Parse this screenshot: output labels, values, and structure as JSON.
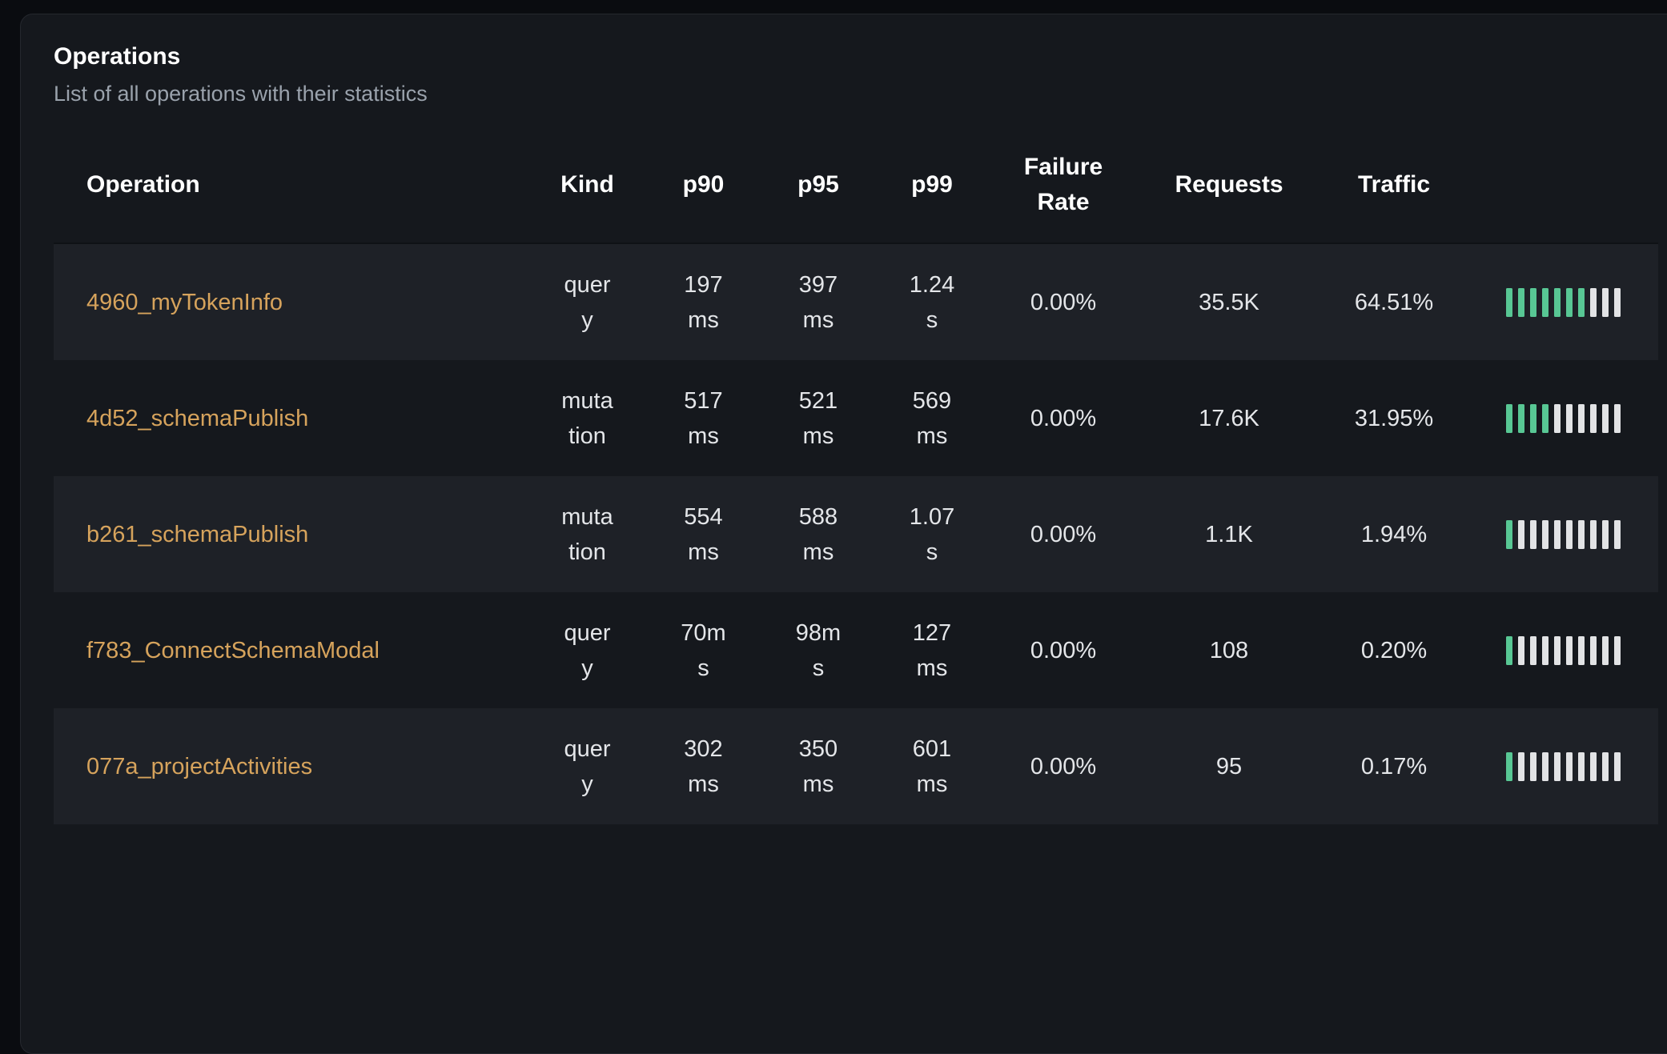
{
  "card": {
    "title": "Operations",
    "subtitle": "List of all operations with their statistics"
  },
  "table": {
    "columns": [
      "Operation",
      "Kind",
      "p90",
      "p95",
      "p99",
      "Failure Rate",
      "Requests",
      "Traffic"
    ],
    "rows": [
      {
        "operation": "4960_myTokenInfo",
        "kind": "query",
        "p90": "197ms",
        "p95": "397ms",
        "p99": "1.24s",
        "failure_rate": "0.00%",
        "requests": "35.5K",
        "traffic": "64.51%",
        "bars": {
          "filled": 7,
          "total": 10
        }
      },
      {
        "operation": "4d52_schemaPublish",
        "kind": "mutation",
        "p90": "517ms",
        "p95": "521ms",
        "p99": "569ms",
        "failure_rate": "0.00%",
        "requests": "17.6K",
        "traffic": "31.95%",
        "bars": {
          "filled": 4,
          "total": 10
        }
      },
      {
        "operation": "b261_schemaPublish",
        "kind": "mutation",
        "p90": "554ms",
        "p95": "588ms",
        "p99": "1.07s",
        "failure_rate": "0.00%",
        "requests": "1.1K",
        "traffic": "1.94%",
        "bars": {
          "filled": 1,
          "total": 10
        }
      },
      {
        "operation": "f783_ConnectSchemaModal",
        "kind": "query",
        "p90": "70ms",
        "p95": "98ms",
        "p99": "127ms",
        "failure_rate": "0.00%",
        "requests": "108",
        "traffic": "0.20%",
        "bars": {
          "filled": 1,
          "total": 10
        }
      },
      {
        "operation": "077a_projectActivities",
        "kind": "query",
        "p90": "302ms",
        "p95": "350ms",
        "p99": "601ms",
        "failure_rate": "0.00%",
        "requests": "95",
        "traffic": "0.17%",
        "bars": {
          "filled": 1,
          "total": 10
        }
      }
    ]
  },
  "colors": {
    "page_bg": "#0a0c10",
    "card_bg": "#15181d",
    "row_alt_bg": "#1e2127",
    "link": "#d6a35c",
    "bar_filled": "#58c794",
    "bar_empty": "#e2e3e5"
  }
}
